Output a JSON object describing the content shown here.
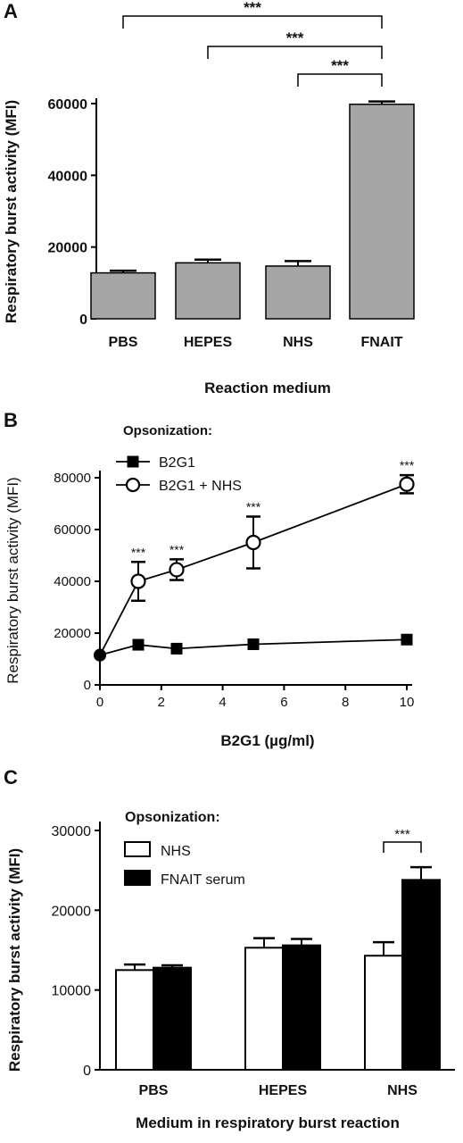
{
  "colors": {
    "bar_gray": "#a6a6a6",
    "black": "#000000",
    "white": "#ffffff"
  },
  "chart_data": [
    {
      "panel": "A",
      "type": "bar",
      "xlabel": "Reaction medium",
      "ylabel": "Respiratory burst activity (MFI)",
      "ylim": [
        0,
        60000
      ],
      "yticks": [
        0,
        20000,
        40000,
        60000
      ],
      "categories": [
        "PBS",
        "HEPES",
        "NHS",
        "FNAIT"
      ],
      "values": [
        12800,
        15600,
        14700,
        59800
      ],
      "errors": [
        600,
        900,
        1400,
        800
      ],
      "significance": [
        {
          "from": "PBS",
          "to": "FNAIT",
          "label": "***"
        },
        {
          "from": "HEPES",
          "to": "FNAIT",
          "label": "***"
        },
        {
          "from": "NHS",
          "to": "FNAIT",
          "label": "***"
        }
      ]
    },
    {
      "panel": "B",
      "type": "line",
      "xlabel": "B2G1 (µg/ml)",
      "ylabel": "Respiratory burst activity (MFI)",
      "legend_title": "Opsonization:",
      "xlim": [
        0,
        10
      ],
      "ylim": [
        0,
        80000
      ],
      "xticks": [
        0,
        2,
        4,
        6,
        8,
        10
      ],
      "yticks": [
        0,
        20000,
        40000,
        60000,
        80000
      ],
      "series": [
        {
          "name": "B2G1",
          "marker": "filled-square",
          "x": [
            0,
            1.25,
            2.5,
            5,
            10
          ],
          "y": [
            11500,
            15500,
            14000,
            15700,
            17500
          ],
          "err": [
            0,
            0,
            0,
            0,
            0
          ]
        },
        {
          "name": "B2G1 + NHS",
          "marker": "open-circle",
          "x": [
            0,
            1.25,
            2.5,
            5,
            10
          ],
          "y": [
            11500,
            40000,
            44500,
            55000,
            77500
          ],
          "err": [
            0,
            7500,
            4000,
            10000,
            3500
          ]
        }
      ],
      "annotations": [
        {
          "x": 1.25,
          "label": "***"
        },
        {
          "x": 2.5,
          "label": "***"
        },
        {
          "x": 5,
          "label": "***"
        },
        {
          "x": 10,
          "label": "***"
        }
      ]
    },
    {
      "panel": "C",
      "type": "bar",
      "xlabel": "Medium in respiratory burst reaction",
      "ylabel": "Respiratory burst activity (MFI)",
      "legend_title": "Opsonization:",
      "ylim": [
        0,
        30000
      ],
      "yticks": [
        0,
        10000,
        20000,
        30000
      ],
      "categories": [
        "PBS",
        "HEPES",
        "NHS"
      ],
      "series": [
        {
          "name": "NHS",
          "fill": "white",
          "values": [
            12500,
            15300,
            14300
          ],
          "errors": [
            700,
            1200,
            1700
          ]
        },
        {
          "name": "FNAIT serum",
          "fill": "black",
          "values": [
            12800,
            15600,
            23800
          ],
          "errors": [
            300,
            800,
            1600
          ]
        }
      ],
      "significance": [
        {
          "category": "NHS",
          "label": "***"
        }
      ]
    }
  ]
}
